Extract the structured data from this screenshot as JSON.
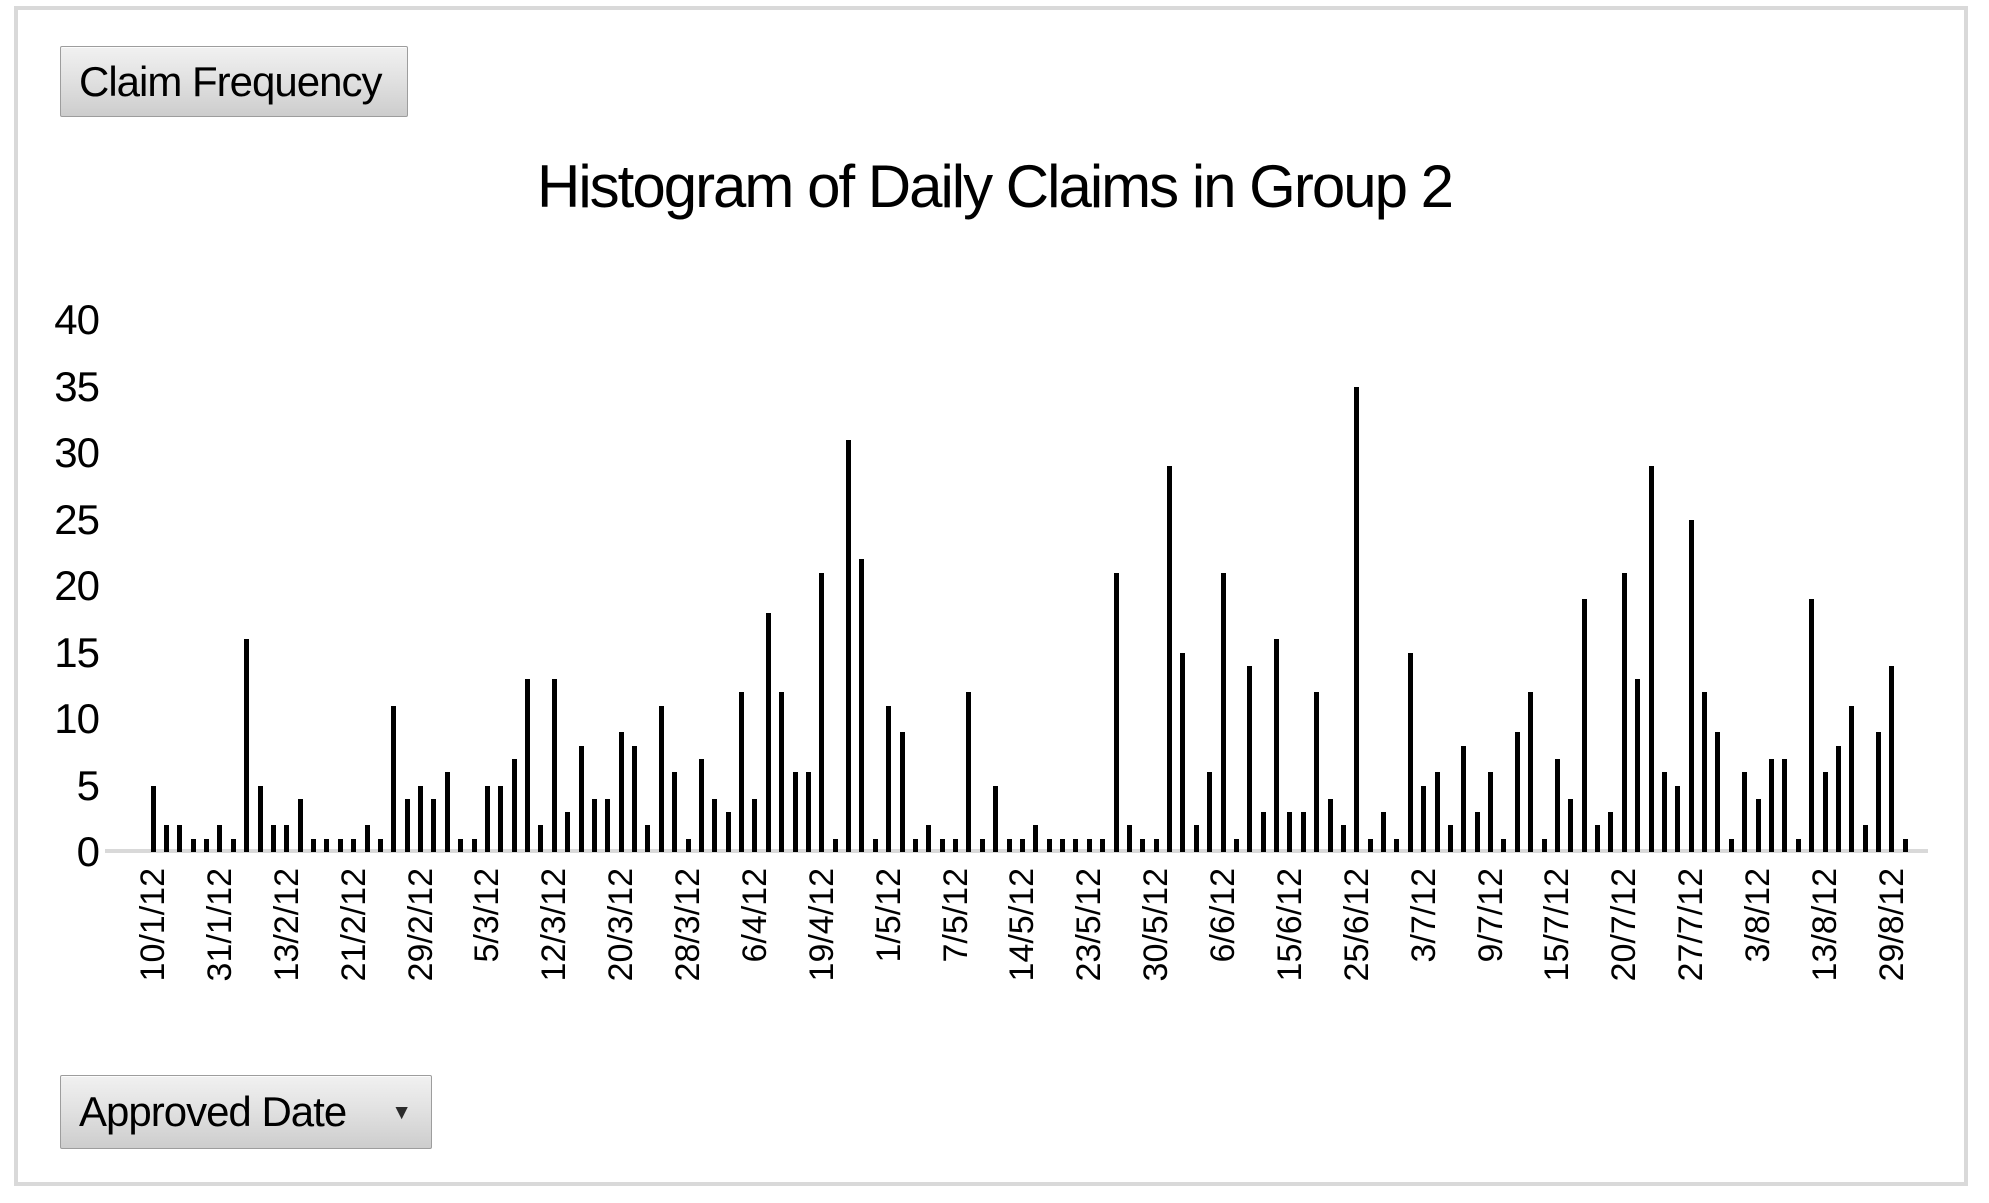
{
  "filter_buttons": {
    "value_field_label": "Claim Frequency",
    "axis_field_label": "Approved Date",
    "dropdown_glyph": "▼"
  },
  "chart_data": {
    "type": "bar",
    "title": "Histogram of Daily Claims in Group 2",
    "xlabel": "Approved Date",
    "ylabel": "Claim Frequency",
    "ylim": [
      0,
      40
    ],
    "y_ticks": [
      40,
      35,
      30,
      25,
      20,
      15,
      10,
      5,
      0
    ],
    "grid": "off",
    "legend": "none",
    "bar_color": "#000000",
    "axis_line_color": "#d9d9d9",
    "x_tick_every": 5,
    "x_tick_labels": [
      "10/1/12",
      "31/1/12",
      "13/2/12",
      "21/2/12",
      "29/2/12",
      "5/3/12",
      "12/3/12",
      "20/3/12",
      "28/3/12",
      "6/4/12",
      "19/4/12",
      "1/5/12",
      "7/5/12",
      "14/5/12",
      "23/5/12",
      "30/5/12",
      "6/6/12",
      "15/6/12",
      "25/6/12",
      "3/7/12",
      "9/7/12",
      "15/7/12",
      "20/7/12",
      "27/7/12",
      "3/8/12",
      "13/8/12",
      "29/8/12"
    ],
    "values": [
      5,
      2,
      2,
      1,
      1,
      2,
      1,
      16,
      5,
      2,
      2,
      4,
      1,
      1,
      1,
      1,
      2,
      1,
      11,
      4,
      5,
      4,
      6,
      1,
      1,
      5,
      5,
      7,
      13,
      2,
      13,
      3,
      8,
      4,
      4,
      9,
      8,
      2,
      11,
      6,
      1,
      7,
      4,
      3,
      12,
      4,
      18,
      12,
      6,
      6,
      21,
      1,
      31,
      22,
      1,
      11,
      9,
      1,
      2,
      1,
      1,
      12,
      1,
      5,
      1,
      1,
      2,
      1,
      1,
      1,
      1,
      1,
      21,
      2,
      1,
      1,
      29,
      15,
      2,
      6,
      21,
      1,
      14,
      3,
      16,
      3,
      3,
      12,
      4,
      2,
      35,
      1,
      3,
      1,
      15,
      5,
      6,
      2,
      8,
      3,
      6,
      1,
      9,
      12,
      1,
      7,
      4,
      19,
      2,
      3,
      21,
      13,
      29,
      6,
      5,
      25,
      12,
      9,
      1,
      6,
      4,
      7,
      7,
      1,
      19,
      6,
      8,
      11,
      2,
      9,
      14,
      1
    ]
  }
}
